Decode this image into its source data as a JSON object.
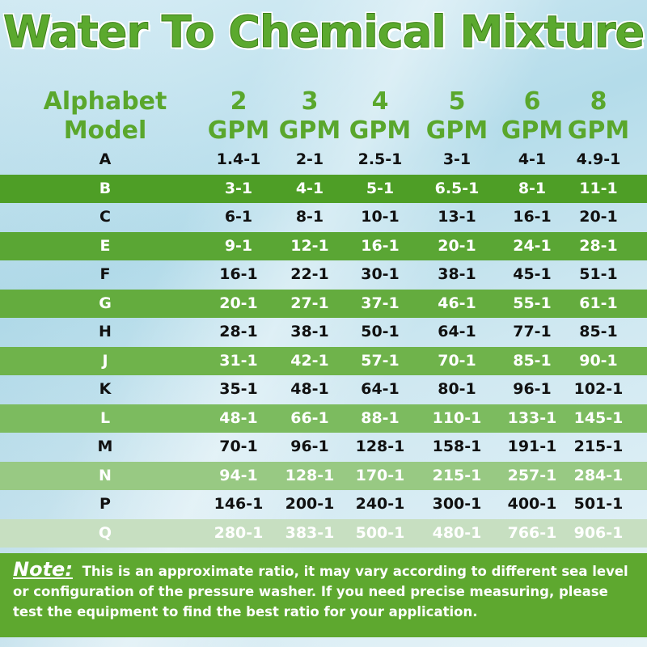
{
  "title": "Water To Chemical Mixture",
  "header": {
    "model_line1": "Alphabet",
    "model_line2": "Model",
    "columns": [
      {
        "num": "2",
        "unit": "GPM"
      },
      {
        "num": "3",
        "unit": "GPM"
      },
      {
        "num": "4",
        "unit": "GPM"
      },
      {
        "num": "5",
        "unit": "GPM"
      },
      {
        "num": "6",
        "unit": "GPM"
      },
      {
        "num": "8",
        "unit": "GPM"
      }
    ]
  },
  "rows": [
    {
      "model": "A",
      "values": [
        "1.4-1",
        "2-1",
        "2.5-1",
        "3-1",
        "4-1",
        "4.9-1"
      ]
    },
    {
      "model": "B",
      "values": [
        "3-1",
        "4-1",
        "5-1",
        "6.5-1",
        "8-1",
        "11-1"
      ]
    },
    {
      "model": "C",
      "values": [
        "6-1",
        "8-1",
        "10-1",
        "13-1",
        "16-1",
        "20-1"
      ]
    },
    {
      "model": "E",
      "values": [
        "9-1",
        "12-1",
        "16-1",
        "20-1",
        "24-1",
        "28-1"
      ]
    },
    {
      "model": "F",
      "values": [
        "16-1",
        "22-1",
        "30-1",
        "38-1",
        "45-1",
        "51-1"
      ]
    },
    {
      "model": "G",
      "values": [
        "20-1",
        "27-1",
        "37-1",
        "46-1",
        "55-1",
        "61-1"
      ]
    },
    {
      "model": "H",
      "values": [
        "28-1",
        "38-1",
        "50-1",
        "64-1",
        "77-1",
        "85-1"
      ]
    },
    {
      "model": "J",
      "values": [
        "31-1",
        "42-1",
        "57-1",
        "70-1",
        "85-1",
        "90-1"
      ]
    },
    {
      "model": "K",
      "values": [
        "35-1",
        "48-1",
        "64-1",
        "80-1",
        "96-1",
        "102-1"
      ]
    },
    {
      "model": "L",
      "values": [
        "48-1",
        "66-1",
        "88-1",
        "110-1",
        "133-1",
        "145-1"
      ]
    },
    {
      "model": "M",
      "values": [
        "70-1",
        "96-1",
        "128-1",
        "158-1",
        "191-1",
        "215-1"
      ]
    },
    {
      "model": "N",
      "values": [
        "94-1",
        "128-1",
        "170-1",
        "215-1",
        "257-1",
        "284-1"
      ]
    },
    {
      "model": "P",
      "values": [
        "146-1",
        "200-1",
        "240-1",
        "300-1",
        "400-1",
        "501-1"
      ]
    },
    {
      "model": "Q",
      "values": [
        "280-1",
        "383-1",
        "500-1",
        "480-1",
        "766-1",
        "906-1"
      ]
    }
  ],
  "note": {
    "label": "Note:",
    "text": "This is an approximate ratio, it may vary according to different sea level or configuration of the pressure washer. If you need precise measuring, please test the equipment to find the best ratio for your application."
  },
  "colors": {
    "title_green": "#5ba92e",
    "dark_text": "#111111",
    "light_text": "#ffffff",
    "note_bg": "#5ea82f",
    "band_colors": [
      "#4e9e26",
      "#5aa634",
      "#64ac3e",
      "#6fb34b",
      "#7cbb5f",
      "#98c983",
      "#c7dfc1"
    ]
  }
}
